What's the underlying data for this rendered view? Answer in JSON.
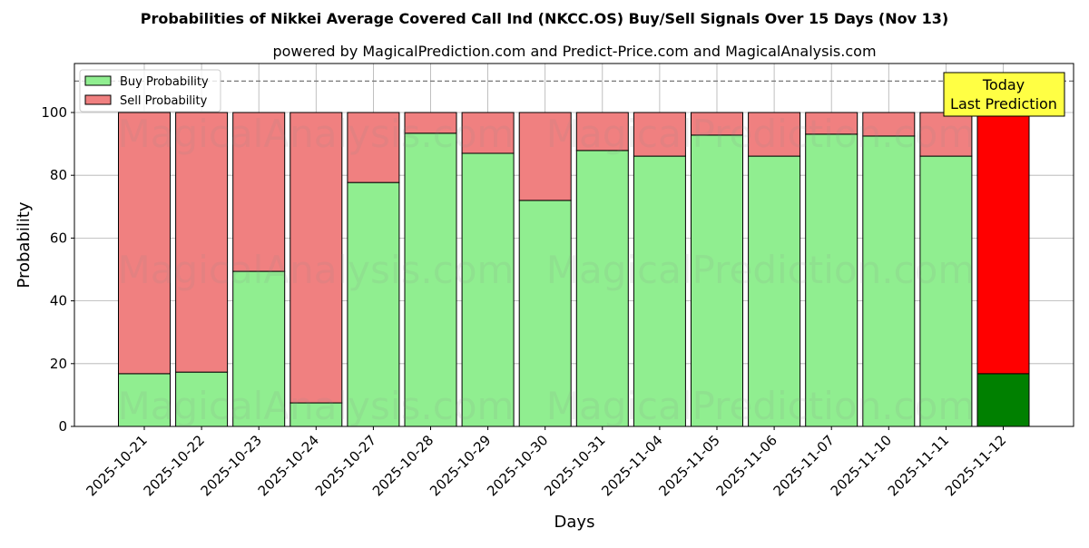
{
  "chart_data": {
    "type": "bar",
    "stacked": true,
    "title": "Probabilities of Nikkei Average Covered Call Ind (NKCC.OS) Buy/Sell Signals Over 15 Days (Nov 13)",
    "subtitle": "powered by MagicalPrediction.com and Predict-Price.com and MagicalAnalysis.com",
    "xlabel": "Days",
    "ylabel": "Probability",
    "ylim": [
      0,
      115
    ],
    "yticks": [
      0,
      20,
      40,
      60,
      80,
      100
    ],
    "reference_line": 110,
    "grid": true,
    "legend_placement": "top-left",
    "categories": [
      "2025-10-21",
      "2025-10-22",
      "2025-10-23",
      "2025-10-24",
      "2025-10-27",
      "2025-10-28",
      "2025-10-29",
      "2025-10-30",
      "2025-10-31",
      "2025-11-04",
      "2025-11-05",
      "2025-11-06",
      "2025-11-07",
      "2025-11-10",
      "2025-11-11",
      "2025-11-12"
    ],
    "series": [
      {
        "name": "Buy Probability",
        "color": "#90ee90",
        "values": [
          16.8,
          17.3,
          49.4,
          7.5,
          77.7,
          93.4,
          87.0,
          72.0,
          87.9,
          86.1,
          92.8,
          86.1,
          93.1,
          92.5,
          86.1,
          16.8
        ]
      },
      {
        "name": "Sell Probability",
        "color": "#f08080",
        "values": [
          83.2,
          82.7,
          50.6,
          92.5,
          22.3,
          6.6,
          13.0,
          28.0,
          12.1,
          13.9,
          7.2,
          13.9,
          6.9,
          7.5,
          13.9,
          83.2
        ]
      }
    ],
    "highlight": {
      "buy_color": "#008000",
      "sell_color": "#ff0000"
    },
    "annotation": {
      "line1": "Today",
      "line2": "Last Prediction",
      "color": "#ffff44"
    },
    "watermarks": [
      "MagicalAnalysis.com",
      "MagicalPrediction.com"
    ]
  }
}
